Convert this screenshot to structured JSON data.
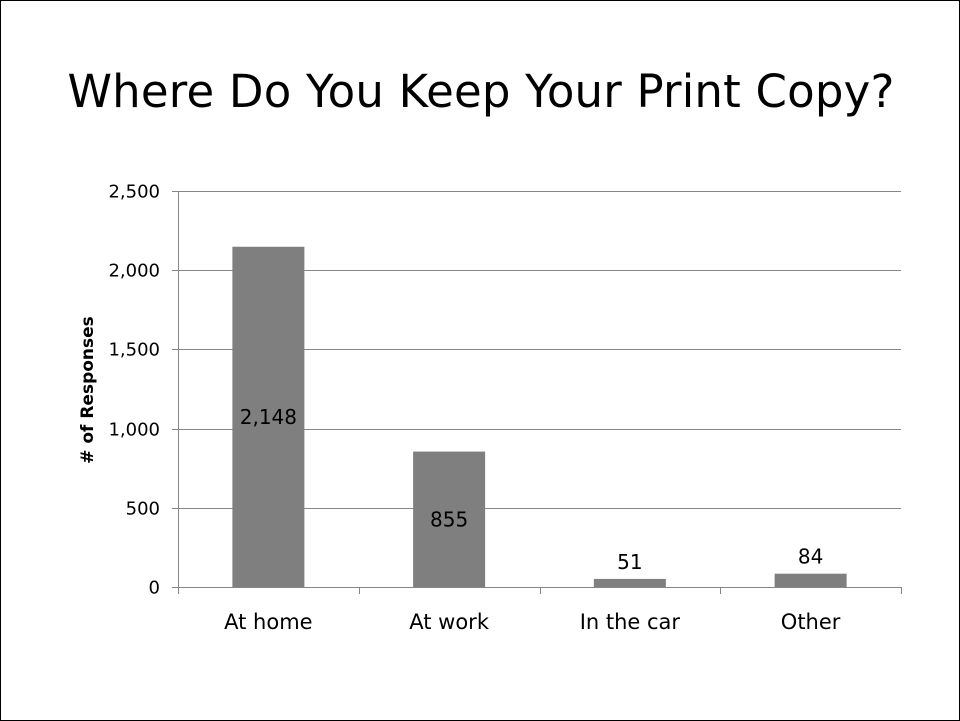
{
  "slide": {
    "title": "Where Do You Keep Your Print Copy?"
  },
  "chart_data": {
    "type": "bar",
    "title": "",
    "xlabel": "",
    "ylabel": "# of Responses",
    "categories": [
      "At home",
      "At work",
      "In the car",
      "Other"
    ],
    "values": [
      2148,
      855,
      51,
      84
    ],
    "value_labels": [
      "2,148",
      "855",
      "51",
      "84"
    ],
    "ylim": [
      0,
      2500
    ],
    "yticks": [
      0,
      500,
      1000,
      1500,
      2000,
      2500
    ],
    "ytick_labels": [
      "0",
      "500",
      "1,000",
      "1,500",
      "2,000",
      "2,500"
    ],
    "grid": true,
    "legend": "none",
    "colors": {
      "bar": "#7f7f7f",
      "grid": "#868686",
      "axis": "#868686"
    }
  }
}
